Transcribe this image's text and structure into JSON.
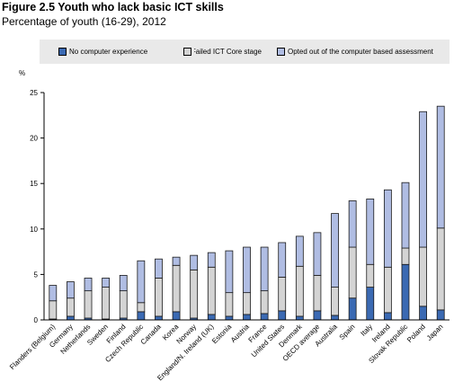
{
  "title": "Figure 2.5 Youth who lack basic ICT skills",
  "subtitle": "Percentage of youth (16-29), 2012",
  "colors": {
    "no_experience": "#3b6ab3",
    "failed_core": "#d4d4d4",
    "opted_out": "#b0bde3",
    "outline": "#1a1a1a",
    "legend_bg": "#e9e9e9"
  },
  "chart_data": {
    "type": "bar",
    "stacked": true,
    "ylabel": "%",
    "ylim": [
      0,
      25
    ],
    "yticks": [
      0,
      5,
      10,
      15,
      20,
      25
    ],
    "grid": false,
    "legend_position": "top",
    "categories": [
      "Flanders (Belgium)",
      "Germany",
      "Netherlands",
      "Sweden",
      "Finland",
      "Czech Republic",
      "Canada",
      "Korea",
      "Norway",
      "England/N. Ireland (UK)",
      "Estonia",
      "Austria",
      "France",
      "United States",
      "Denmark",
      "OECD average",
      "Australia",
      "Spain",
      "Italy",
      "Ireland",
      "Slovak Republic",
      "Poland",
      "Japan"
    ],
    "series": [
      {
        "name": "No computer experience",
        "values": [
          0.1,
          0.4,
          0.2,
          0.1,
          0.2,
          0.9,
          0.4,
          0.9,
          0.2,
          0.6,
          0.4,
          0.6,
          0.7,
          1.0,
          0.4,
          1.0,
          0.5,
          2.4,
          3.6,
          0.8,
          6.1,
          1.5,
          1.1
        ]
      },
      {
        "name": "Failed ICT Core stage",
        "values": [
          2.0,
          2.0,
          3.0,
          3.5,
          3.0,
          1.0,
          4.2,
          5.1,
          5.3,
          5.2,
          2.6,
          2.4,
          2.5,
          3.7,
          5.5,
          3.9,
          3.1,
          5.6,
          2.5,
          5.0,
          1.8,
          6.5,
          9.0
        ]
      },
      {
        "name": "Opted out of the computer based assessment",
        "values": [
          1.7,
          1.8,
          1.4,
          1.0,
          1.7,
          4.6,
          2.1,
          0.9,
          1.6,
          1.6,
          4.6,
          5.0,
          4.8,
          3.8,
          3.3,
          4.7,
          8.1,
          5.1,
          7.2,
          8.5,
          7.2,
          14.9,
          13.4
        ]
      }
    ]
  }
}
